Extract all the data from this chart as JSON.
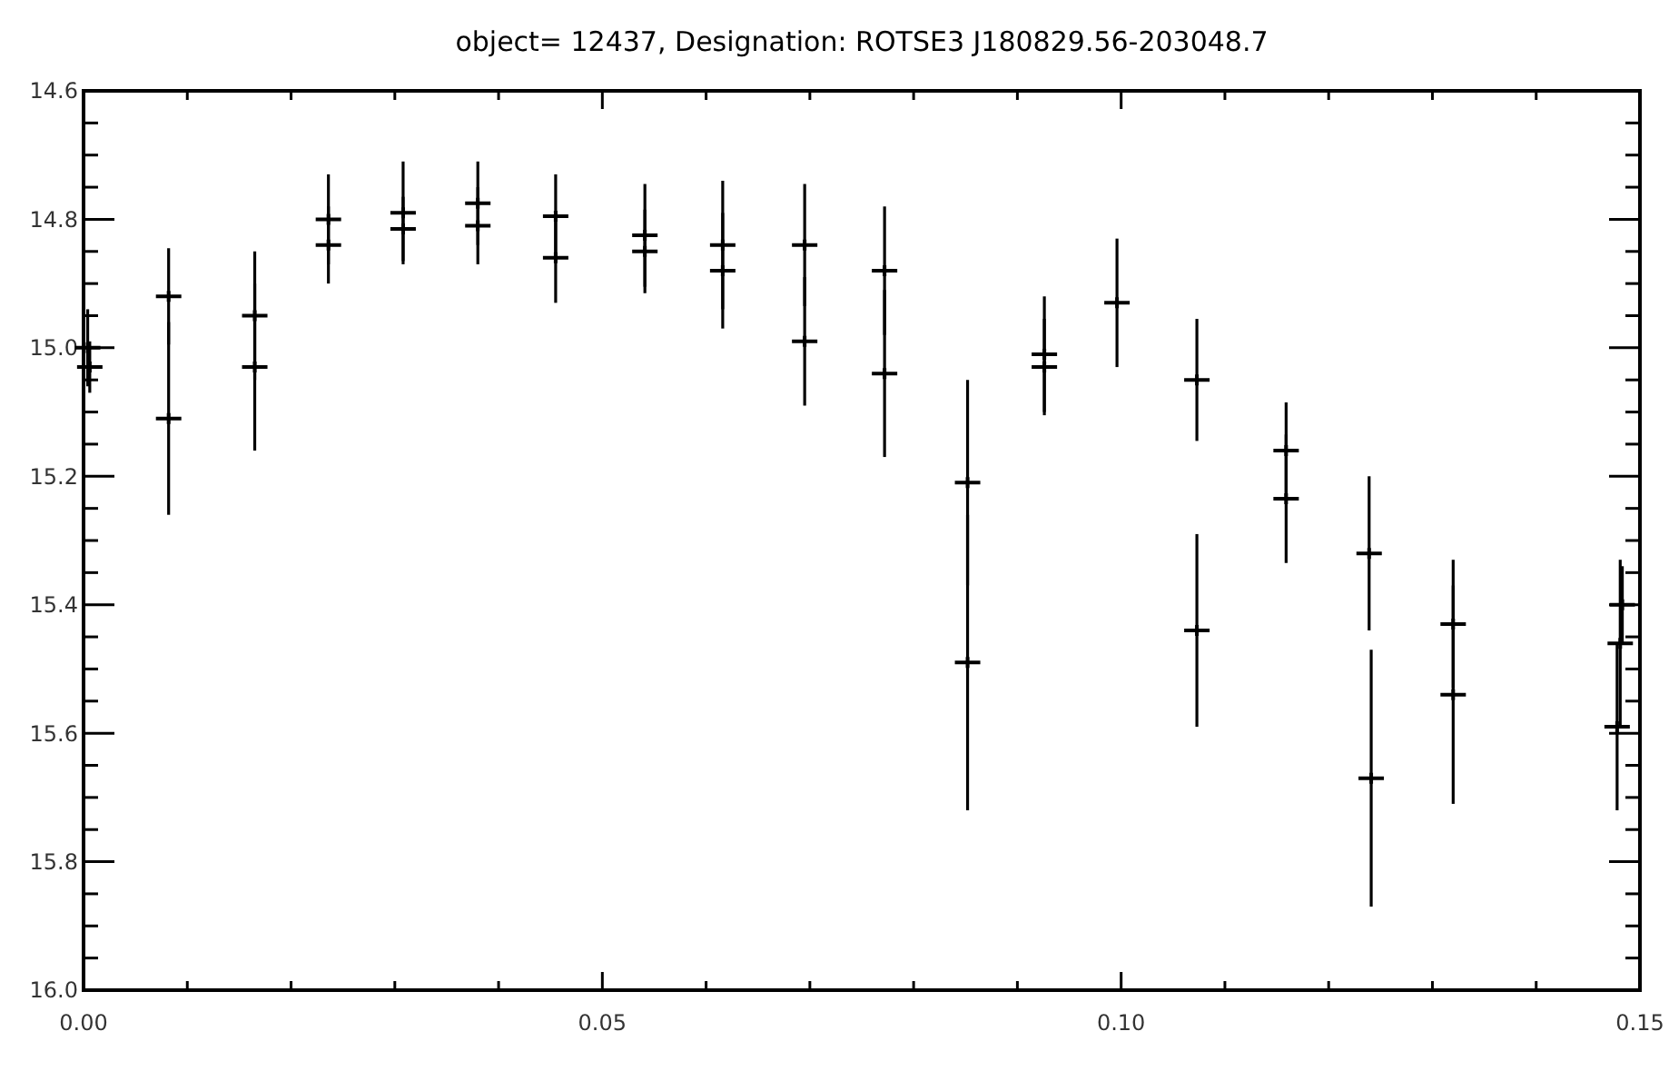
{
  "chart_data": {
    "type": "scatter",
    "title": "object= 12437, Designation: ROTSE3 J180829.56-203048.7",
    "x": [
      0.0004,
      0.0006,
      0.0082,
      0.0082,
      0.0165,
      0.0165,
      0.0236,
      0.0236,
      0.0308,
      0.0308,
      0.038,
      0.038,
      0.0455,
      0.0455,
      0.0541,
      0.0541,
      0.0616,
      0.0616,
      0.0695,
      0.0695,
      0.0772,
      0.0772,
      0.0852,
      0.0852,
      0.0926,
      0.0926,
      0.0996,
      0.1073,
      0.1073,
      0.1159,
      0.1159,
      0.1239,
      0.1241,
      0.132,
      0.132,
      0.1483,
      0.1481,
      0.1478
    ],
    "values": [
      15.0,
      15.03,
      14.92,
      15.11,
      14.95,
      15.03,
      14.8,
      14.84,
      14.79,
      14.815,
      14.775,
      14.81,
      14.795,
      14.86,
      14.825,
      14.85,
      14.84,
      14.88,
      14.84,
      14.99,
      14.88,
      15.04,
      15.21,
      15.49,
      15.01,
      15.03,
      14.93,
      15.05,
      15.44,
      15.16,
      15.235,
      15.32,
      15.67,
      15.43,
      15.54,
      15.4,
      15.46,
      15.59
    ],
    "errors": [
      0.06,
      0.04,
      0.075,
      0.15,
      0.1,
      0.13,
      0.07,
      0.06,
      0.08,
      0.05,
      0.065,
      0.06,
      0.065,
      0.07,
      0.08,
      0.065,
      0.1,
      0.09,
      0.095,
      0.1,
      0.1,
      0.13,
      0.16,
      0.23,
      0.09,
      0.075,
      0.1,
      0.095,
      0.15,
      0.075,
      0.1,
      0.12,
      0.2,
      0.1,
      0.17,
      0.06,
      0.13,
      0.13
    ],
    "color": "#000000",
    "marker": "cross",
    "xlim": [
      0,
      0.15
    ],
    "ylim": [
      16.0,
      14.6
    ],
    "xticks": [
      {
        "value": 0,
        "label": "0.00"
      },
      {
        "value": 0.01,
        "label": null
      },
      {
        "value": 0.02,
        "label": null
      },
      {
        "value": 0.03,
        "label": null
      },
      {
        "value": 0.04,
        "label": null
      },
      {
        "value": 0.05,
        "label": "0.05"
      },
      {
        "value": 0.06,
        "label": null
      },
      {
        "value": 0.07,
        "label": null
      },
      {
        "value": 0.08,
        "label": null
      },
      {
        "value": 0.09,
        "label": null
      },
      {
        "value": 0.1,
        "label": "0.10"
      },
      {
        "value": 0.11,
        "label": null
      },
      {
        "value": 0.12,
        "label": null
      },
      {
        "value": 0.13,
        "label": null
      },
      {
        "value": 0.14,
        "label": null
      },
      {
        "value": 0.15,
        "label": "0.15"
      }
    ],
    "yticks": [
      14.6,
      {
        "value": 14.65,
        "label": null
      },
      {
        "value": 14.7,
        "label": null
      },
      {
        "value": 14.75,
        "label": null
      },
      14.8,
      {
        "value": 14.85,
        "label": null
      },
      {
        "value": 14.9,
        "label": null
      },
      {
        "value": 14.95,
        "label": null
      },
      {
        "value": 15.0,
        "label": "15.0"
      },
      {
        "value": 15.05,
        "label": null
      },
      {
        "value": 15.1,
        "label": null
      },
      {
        "value": 15.15,
        "label": null
      },
      15.2,
      {
        "value": 15.25,
        "label": null
      },
      {
        "value": 15.3,
        "label": null
      },
      {
        "value": 15.35,
        "label": null
      },
      15.4,
      {
        "value": 15.45,
        "label": null
      },
      {
        "value": 15.5,
        "label": null
      },
      {
        "value": 15.55,
        "label": null
      },
      15.6,
      {
        "value": 15.65,
        "label": null
      },
      {
        "value": 15.7,
        "label": null
      },
      {
        "value": 15.75,
        "label": null
      },
      15.8,
      {
        "value": 15.85,
        "label": null
      },
      {
        "value": 15.9,
        "label": null
      },
      {
        "value": 15.95,
        "label": null
      },
      {
        "value": 16.0,
        "label": "16.0"
      }
    ]
  }
}
